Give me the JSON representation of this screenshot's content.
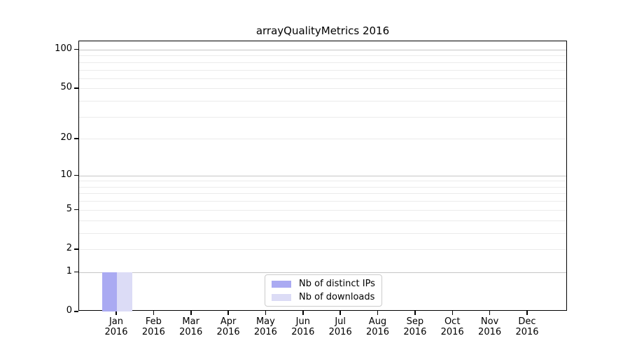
{
  "chart_data": {
    "type": "bar",
    "title": "arrayQualityMetrics 2016",
    "categories": [
      "Jan 2016",
      "Feb 2016",
      "Mar 2016",
      "Apr 2016",
      "May 2016",
      "Jun 2016",
      "Jul 2016",
      "Aug 2016",
      "Sep 2016",
      "Oct 2016",
      "Nov 2016",
      "Dec 2016"
    ],
    "series": [
      {
        "name": "Nb of distinct IPs",
        "color": "#aaaaf2",
        "values": [
          1,
          0,
          0,
          0,
          0,
          0,
          0,
          0,
          0,
          0,
          0,
          0
        ]
      },
      {
        "name": "Nb of downloads",
        "color": "#dcdcf6",
        "values": [
          1,
          0,
          0,
          0,
          0,
          0,
          0,
          0,
          0,
          0,
          0,
          0
        ]
      }
    ],
    "xlabel": "",
    "ylabel": "",
    "y_scale": "log1p",
    "ylim": [
      0,
      116
    ],
    "y_ticks": [
      0,
      1,
      2,
      5,
      10,
      20,
      50,
      100
    ],
    "y_major_gridlines": [
      1,
      10,
      100
    ],
    "y_minor_gridlines": [
      2,
      3,
      4,
      5,
      6,
      7,
      8,
      9,
      20,
      30,
      40,
      50,
      60,
      70,
      80,
      90
    ],
    "grid": true,
    "legend": {
      "position": "lower center",
      "entries": [
        "Nb of distinct IPs",
        "Nb of downloads"
      ]
    },
    "colors": {
      "major_grid": "#c6c6c6",
      "minor_grid": "#ebebeb",
      "axis": "#000000",
      "background": "#ffffff"
    }
  }
}
